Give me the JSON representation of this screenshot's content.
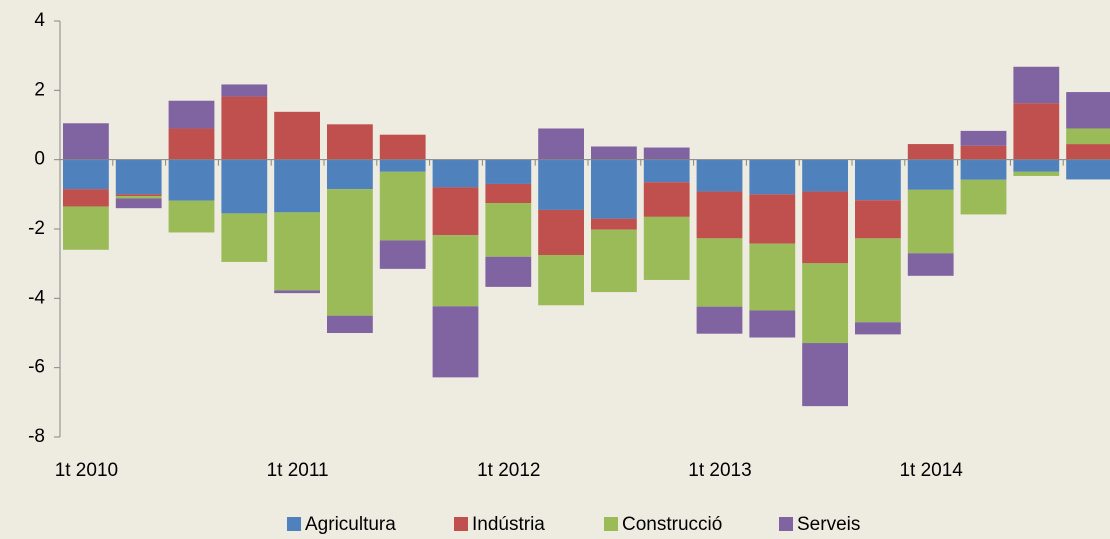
{
  "chart_data": {
    "type": "stacked-bar",
    "categories": [
      "1t 2010",
      null,
      null,
      null,
      "1t 2011",
      null,
      null,
      null,
      "1t 2012",
      null,
      null,
      null,
      "1t 2013",
      null,
      null,
      null,
      "1t 2014",
      null,
      null,
      null
    ],
    "series": [
      {
        "name": "Agricultura",
        "color": "#4f81bd",
        "values": [
          -0.85,
          -1.0,
          -1.18,
          -1.55,
          -1.52,
          -0.85,
          -0.35,
          -0.8,
          -0.7,
          -1.45,
          -1.7,
          -0.65,
          -0.92,
          -1.0,
          -0.92,
          -1.17,
          -0.87,
          -0.58,
          -0.35,
          -0.57
        ]
      },
      {
        "name": "Indústria",
        "color": "#c0504d",
        "values": [
          -0.5,
          -0.05,
          0.9,
          1.82,
          1.38,
          1.02,
          0.72,
          -1.38,
          -0.55,
          -1.3,
          -0.32,
          -1.0,
          -1.35,
          -1.42,
          -2.07,
          -1.1,
          0.45,
          0.4,
          1.63,
          0.45
        ]
      },
      {
        "name": "Construcció",
        "color": "#9bbb59",
        "values": [
          -1.25,
          -0.07,
          -0.92,
          -1.4,
          -2.25,
          -3.65,
          -1.98,
          -2.05,
          -1.55,
          -1.45,
          -1.8,
          -1.82,
          -1.97,
          -1.93,
          -2.3,
          -2.42,
          -1.83,
          -1.0,
          -0.12,
          0.45
        ]
      },
      {
        "name": "Serveis",
        "color": "#8064a2",
        "values": [
          1.05,
          -0.28,
          0.8,
          0.35,
          -0.08,
          -0.5,
          -0.82,
          -2.05,
          -0.87,
          0.9,
          0.38,
          0.35,
          -0.78,
          -0.78,
          -1.82,
          -0.35,
          -0.65,
          0.43,
          1.05,
          1.05
        ]
      }
    ],
    "ylim": [
      -8,
      4
    ],
    "yticks": [
      -8,
      -6,
      -4,
      -2,
      0,
      2,
      4
    ]
  }
}
